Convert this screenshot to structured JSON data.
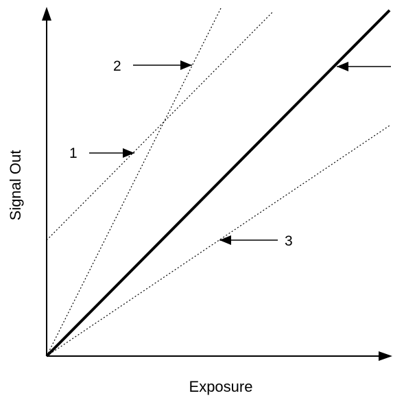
{
  "diagram": {
    "xlabel": "Exposure",
    "ylabel": "Signal Out",
    "colors": {
      "ink": "#000000",
      "background": "#ffffff"
    },
    "reference_line": {
      "style": "solid-thick",
      "marker_label": ""
    },
    "dotted_lines": [
      {
        "label": "1",
        "style": "dotted",
        "description_from_image": "offset"
      },
      {
        "label": "2",
        "style": "dotted",
        "description_from_image": "steeper"
      },
      {
        "label": "3",
        "style": "dotted",
        "description_from_image": "shallower"
      }
    ]
  }
}
